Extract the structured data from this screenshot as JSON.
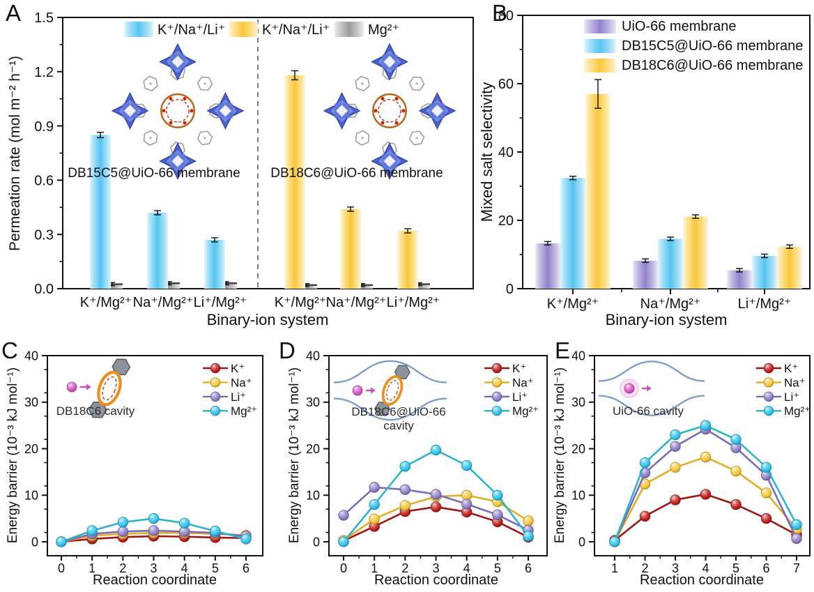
{
  "figure": {
    "panel_labels": {
      "A": "A",
      "B": "B",
      "C": "C",
      "D": "D",
      "E": "E"
    },
    "background": "#ffffff"
  },
  "colors": {
    "cyan": "#55c5f1",
    "yellow": "#f9c838",
    "gray": "#9c9c9c",
    "purple": "#9082ca",
    "k": "#c01d1d",
    "k_line": "#a01414",
    "na": "#f4c636",
    "na_line": "#e3ad27",
    "li": "#8d7ec7",
    "li_line": "#7a6bb9",
    "mg": "#30c2ea",
    "mg_line": "#2fb2cb",
    "axis": "#111111",
    "error_bar": "#111111",
    "divider": "#444444",
    "channel": "#7d9dc7",
    "ring_orange": "#ee8c1c",
    "ring_inner": "#cc5517",
    "ion_pink": "#d457c4",
    "hexagon_gray": "#8d939b",
    "mof_blue": "#5c73d8"
  },
  "chart_data": [
    {
      "id": "A",
      "type": "bar",
      "ylabel": "Permeation rate (mol m⁻² h⁻¹)",
      "xlabel": "Binary-ion system",
      "ylim": [
        0,
        1.5
      ],
      "yticks": [
        "0.0",
        "0.3",
        "0.6",
        "0.9",
        "1.2",
        "1.5"
      ],
      "legend": [
        {
          "label": "K⁺/Na⁺/Li⁺",
          "color": "cyan"
        },
        {
          "label": "K⁺/Na⁺/Li⁺",
          "color": "yellow"
        },
        {
          "label": "Mg²⁺",
          "color": "gray"
        }
      ],
      "annotations": [
        "DB15C5@UiO-66 membrane",
        "DB18C6@UiO-66 membrane"
      ],
      "groups": [
        {
          "category": "K⁺/Mg²⁺",
          "main_color": "cyan",
          "main": 0.85,
          "main_err": 0.015,
          "mg": 0.025,
          "mg_err": 0.005
        },
        {
          "category": "Na⁺/Mg²⁺",
          "main_color": "cyan",
          "main": 0.42,
          "main_err": 0.008,
          "mg": 0.03,
          "mg_err": 0.005
        },
        {
          "category": "Li⁺/Mg²⁺",
          "main_color": "cyan",
          "main": 0.27,
          "main_err": 0.008,
          "mg": 0.03,
          "mg_err": 0.005
        },
        {
          "category": "K⁺/Mg²⁺",
          "main_color": "yellow",
          "main": 1.18,
          "main_err": 0.025,
          "mg": 0.02,
          "mg_err": 0.004
        },
        {
          "category": "Na⁺/Mg²⁺",
          "main_color": "yellow",
          "main": 0.44,
          "main_err": 0.01,
          "mg": 0.02,
          "mg_err": 0.004
        },
        {
          "category": "Li⁺/Mg²⁺",
          "main_color": "yellow",
          "main": 0.32,
          "main_err": 0.008,
          "mg": 0.025,
          "mg_err": 0.004
        }
      ]
    },
    {
      "id": "B",
      "type": "bar",
      "ylabel": "Mixed salt selectivity",
      "xlabel": "Binary-ion system",
      "ylim": [
        0,
        80
      ],
      "yticks": [
        0,
        20,
        40,
        60,
        80
      ],
      "categories": [
        "K⁺/Mg²⁺",
        "Na⁺/Mg²⁺",
        "Li⁺/Mg²⁺"
      ],
      "series": [
        {
          "name": "UiO-66 membrane",
          "color": "purple",
          "values": [
            13.3,
            8.2,
            5.4
          ],
          "errors": [
            0.4,
            0.3,
            0.25
          ]
        },
        {
          "name": "DB15C5@UiO-66 membrane",
          "color": "cyan",
          "values": [
            32.4,
            14.6,
            9.6
          ],
          "errors": [
            0.5,
            0.4,
            0.3
          ]
        },
        {
          "name": "DB18C6@UiO-66 membrane",
          "color": "yellow",
          "values": [
            57.0,
            21.1,
            12.3
          ],
          "errors": [
            4.2,
            0.4,
            0.3
          ]
        }
      ]
    },
    {
      "id": "C",
      "type": "line",
      "inset": {
        "line1": "DB18C6 cavity",
        "line2": ""
      },
      "ylabel": "Energy barrier (10⁻³ kJ mol⁻¹)",
      "xlabel": "Reaction coordinate",
      "ylim": [
        -3,
        40
      ],
      "yticks": [
        0,
        10,
        20,
        30,
        40
      ],
      "x": [
        0,
        1,
        2,
        3,
        4,
        5,
        6
      ],
      "series": [
        {
          "name": "K⁺",
          "color": "k",
          "line": "k_line",
          "values": [
            0,
            0.6,
            1.0,
            1.2,
            1.1,
            0.9,
            0.8
          ]
        },
        {
          "name": "Na⁺",
          "color": "na",
          "line": "na_line",
          "values": [
            0,
            1.3,
            1.7,
            1.9,
            1.9,
            1.7,
            1.4
          ]
        },
        {
          "name": "Li⁺",
          "color": "li",
          "line": "li_line",
          "values": [
            0,
            1.7,
            2.2,
            2.4,
            2.2,
            1.9,
            1.2
          ]
        },
        {
          "name": "Mg²⁺",
          "color": "mg",
          "line": "mg_line",
          "values": [
            0,
            2.4,
            4.2,
            5.0,
            4.0,
            2.3,
            0.6
          ]
        }
      ]
    },
    {
      "id": "D",
      "type": "line",
      "inset": {
        "line1": "DB18C6@UiO-66",
        "line2": "cavity"
      },
      "ylabel": "Energy barrier (10⁻³ kJ mol⁻¹)",
      "xlabel": "Reaction coordinate",
      "ylim": [
        -3,
        40
      ],
      "yticks": [
        0,
        10,
        20,
        30,
        40
      ],
      "x": [
        0,
        1,
        2,
        3,
        4,
        5,
        6
      ],
      "series": [
        {
          "name": "K⁺",
          "color": "k",
          "line": "k_line",
          "values": [
            0.2,
            3.3,
            6.5,
            7.5,
            6.4,
            4.3,
            1.0
          ]
        },
        {
          "name": "Na⁺",
          "color": "na",
          "line": "na_line",
          "values": [
            0.3,
            4.9,
            7.8,
            9.7,
            10.0,
            8.6,
            4.5
          ]
        },
        {
          "name": "Li⁺",
          "color": "li",
          "line": "li_line",
          "values": [
            5.7,
            11.7,
            11.2,
            10.2,
            8.1,
            5.8,
            2.5
          ]
        },
        {
          "name": "Mg²⁺",
          "color": "mg",
          "line": "mg_line",
          "values": [
            0,
            8.0,
            16.2,
            19.7,
            16.4,
            10.0,
            1.2
          ]
        }
      ]
    },
    {
      "id": "E",
      "type": "line",
      "inset": {
        "line1": "UiO-66 cavity",
        "line2": ""
      },
      "ylabel": "Energy barrier (10⁻³ kJ mol⁻¹)",
      "xlabel": "Reaction coordinate",
      "ylim": [
        -3,
        40
      ],
      "yticks": [
        0,
        10,
        20,
        30,
        40
      ],
      "x": [
        1,
        2,
        3,
        4,
        5,
        6,
        7
      ],
      "series": [
        {
          "name": "K⁺",
          "color": "k",
          "line": "k_line",
          "values": [
            0.3,
            5.5,
            9.0,
            10.2,
            8.0,
            5.0,
            1.5
          ]
        },
        {
          "name": "Na⁺",
          "color": "na",
          "line": "na_line",
          "values": [
            0,
            12.4,
            16.0,
            18.2,
            15.2,
            10.5,
            2.7
          ]
        },
        {
          "name": "Li⁺",
          "color": "li",
          "line": "li_line",
          "values": [
            0,
            14.8,
            20.5,
            24.2,
            20.2,
            14.3,
            0.7
          ]
        },
        {
          "name": "Mg²⁺",
          "color": "mg",
          "line": "mg_line",
          "values": [
            0,
            17.0,
            23.0,
            25.0,
            22.0,
            16.0,
            3.7
          ]
        }
      ]
    }
  ]
}
